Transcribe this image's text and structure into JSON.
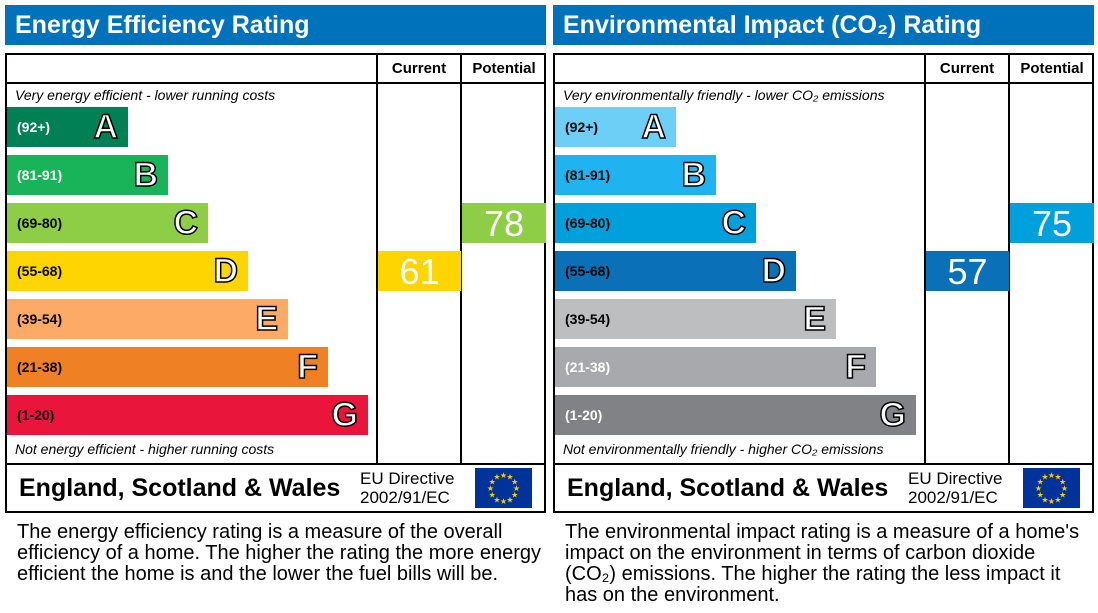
{
  "chart_data": [
    {
      "type": "bar",
      "title": "Energy Efficiency Rating",
      "column_headers": [
        "Current",
        "Potential"
      ],
      "top_note": "Very energy efficient - lower running costs",
      "bottom_note": "Not energy efficient - higher running costs",
      "bands": [
        {
          "range": "(92+)",
          "letter": "A",
          "color": "#008054",
          "text_color": "#ffffff"
        },
        {
          "range": "(81-91)",
          "letter": "B",
          "color": "#19b459",
          "text_color": "#ffffff"
        },
        {
          "range": "(69-80)",
          "letter": "C",
          "color": "#8dce46",
          "text_color": "#000000"
        },
        {
          "range": "(55-68)",
          "letter": "D",
          "color": "#ffd500",
          "text_color": "#000000"
        },
        {
          "range": "(39-54)",
          "letter": "E",
          "color": "#fcaa65",
          "text_color": "#000000"
        },
        {
          "range": "(21-38)",
          "letter": "F",
          "color": "#ef8023",
          "text_color": "#000000"
        },
        {
          "range": "(1-20)",
          "letter": "G",
          "color": "#e9153b",
          "text_color": "#000000"
        }
      ],
      "current": {
        "value": "61",
        "band": "D"
      },
      "potential": {
        "value": "78",
        "band": "C"
      },
      "footer": {
        "country": "England, Scotland & Wales",
        "directive_line1": "EU Directive",
        "directive_line2": "2002/91/EC"
      },
      "description": "The energy efficiency rating is a measure of the overall efficiency of a home. The higher the rating the more energy efficient the home is and the lower the fuel bills will be."
    },
    {
      "type": "bar",
      "title": "Environmental Impact (CO₂) Rating",
      "column_headers": [
        "Current",
        "Potential"
      ],
      "top_note": "Very environmentally friendly - lower CO₂ emissions",
      "bottom_note": "Not environmentally friendly - higher CO₂ emissions",
      "bands": [
        {
          "range": "(92+)",
          "letter": "A",
          "color": "#6dcff6",
          "text_color": "#000000"
        },
        {
          "range": "(81-91)",
          "letter": "B",
          "color": "#1fb3f0",
          "text_color": "#000000"
        },
        {
          "range": "(69-80)",
          "letter": "C",
          "color": "#00a0dc",
          "text_color": "#000000"
        },
        {
          "range": "(55-68)",
          "letter": "D",
          "color": "#0a70b8",
          "text_color": "#000000"
        },
        {
          "range": "(39-54)",
          "letter": "E",
          "color": "#bcbec0",
          "text_color": "#000000"
        },
        {
          "range": "(21-38)",
          "letter": "F",
          "color": "#a7a9ac",
          "text_color": "#ffffff"
        },
        {
          "range": "(1-20)",
          "letter": "G",
          "color": "#808285",
          "text_color": "#ffffff"
        }
      ],
      "current": {
        "value": "57",
        "band": "D"
      },
      "potential": {
        "value": "75",
        "band": "C"
      },
      "footer": {
        "country": "England, Scotland & Wales",
        "directive_line1": "EU Directive",
        "directive_line2": "2002/91/EC"
      },
      "description": "The environmental impact rating is a measure of a home's impact on the environment in terms of carbon dioxide (CO₂) emissions. The higher the rating the less impact it has on the environment."
    }
  ]
}
